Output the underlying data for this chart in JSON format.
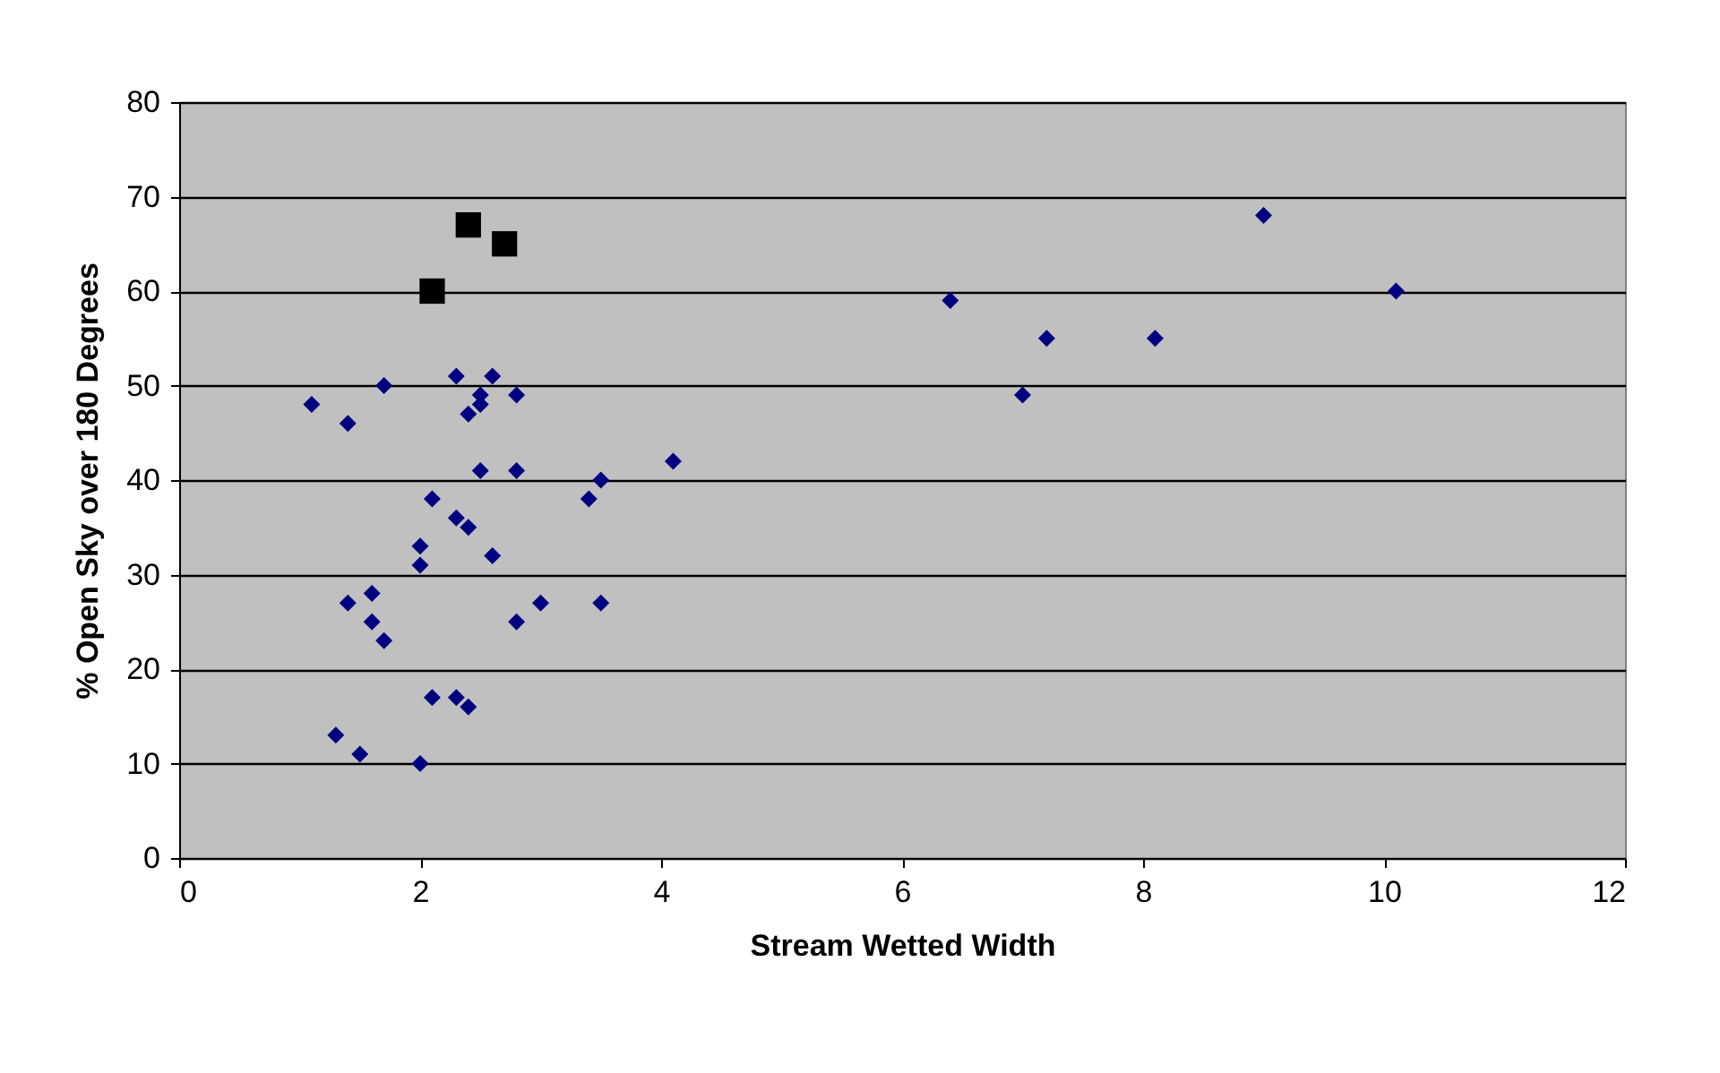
{
  "chart_data": {
    "type": "scatter",
    "xlabel": "Stream Wetted Width",
    "ylabel": "% Open Sky over 180 Degrees",
    "xlim": [
      0,
      12
    ],
    "xticks": [
      0,
      2,
      4,
      6,
      8,
      10,
      12
    ],
    "ylim": [
      0,
      80
    ],
    "yticks": [
      0,
      10,
      20,
      30,
      40,
      50,
      60,
      70,
      80
    ],
    "grid": "y",
    "series": [
      {
        "color": "#000080",
        "marker": "diamond",
        "x": [
          1.1,
          1.4,
          1.7,
          2.3,
          2.6,
          2.5,
          2.5,
          2.4,
          2.8,
          2.5,
          2.8,
          4.1,
          3.5,
          3.4,
          2.1,
          2.3,
          2.4,
          2.0,
          2.0,
          2.6,
          1.4,
          1.6,
          1.6,
          1.7,
          2.8,
          3.0,
          3.5,
          2.1,
          2.3,
          2.4,
          1.3,
          1.5,
          2.0,
          6.4,
          7.0,
          7.2,
          8.1,
          9.0,
          10.1
        ],
        "values": [
          48,
          46,
          50,
          51,
          51,
          49,
          48,
          47,
          49,
          41,
          41,
          42,
          40,
          38,
          38,
          36,
          35,
          33,
          31,
          32,
          27,
          28,
          25,
          23,
          25,
          27,
          27,
          17,
          17,
          16,
          13,
          11,
          10,
          59,
          49,
          55,
          55,
          68,
          60
        ]
      },
      {
        "color": "#000000",
        "marker": "square",
        "x": [
          2.1,
          2.4,
          2.7
        ],
        "values": [
          60,
          67,
          65
        ]
      }
    ]
  }
}
